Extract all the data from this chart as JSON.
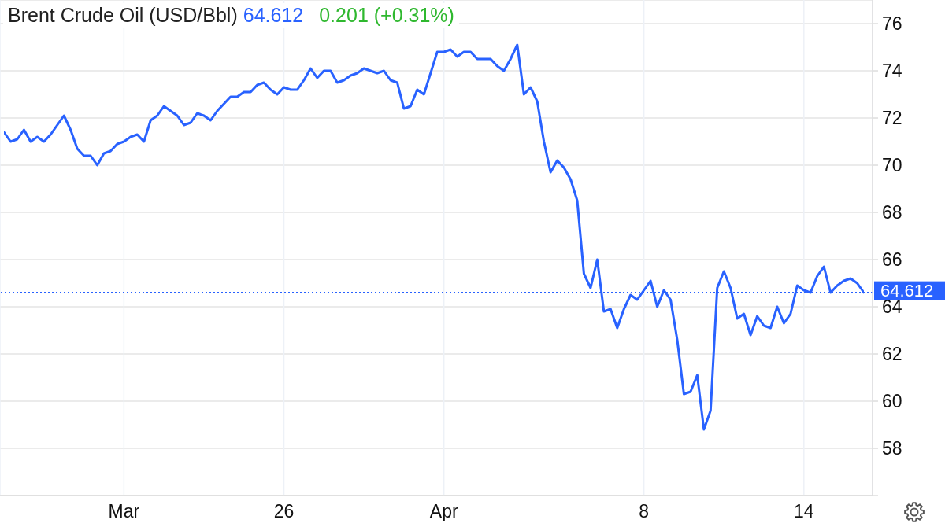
{
  "chart_data": {
    "type": "line",
    "title": "Brent Crude Oil (USD/Bbl)",
    "annotations": [
      "64.612",
      "0.201 (+0.31%)"
    ],
    "categories": [
      null,
      null,
      null,
      null,
      null,
      null,
      null,
      null,
      null,
      null,
      null,
      null,
      null,
      null,
      null,
      null,
      null,
      null,
      "Mar",
      null,
      null,
      null,
      null,
      null,
      null,
      null,
      null,
      null,
      null,
      null,
      null,
      null,
      null,
      null,
      null,
      null,
      null,
      null,
      null,
      null,
      null,
      null,
      "26",
      null,
      null,
      null,
      null,
      null,
      null,
      null,
      null,
      null,
      null,
      null,
      null,
      null,
      null,
      null,
      null,
      null,
      null,
      null,
      null,
      null,
      null,
      null,
      "Apr",
      null,
      null,
      null,
      null,
      null,
      null,
      null,
      null,
      null,
      null,
      null,
      null,
      null,
      null,
      null,
      null,
      null,
      null,
      null,
      null,
      null,
      null,
      null,
      null,
      null,
      null,
      null,
      null,
      null,
      "8",
      null,
      null,
      null,
      null,
      null,
      null,
      null,
      null,
      null,
      null,
      null,
      null,
      null,
      null,
      null,
      null,
      null,
      null,
      null,
      null,
      null,
      null,
      null,
      "14",
      null,
      null,
      null,
      null,
      null,
      null,
      null,
      null,
      null
    ],
    "series": [
      {
        "color": "#2962ff",
        "values": [
          71.4,
          71.0,
          71.1,
          71.5,
          71.0,
          71.2,
          71.0,
          71.3,
          71.7,
          72.1,
          71.5,
          70.7,
          70.4,
          70.4,
          70.0,
          70.5,
          70.6,
          70.9,
          71.0,
          71.2,
          71.3,
          71.0,
          71.9,
          72.1,
          72.5,
          72.3,
          72.1,
          71.7,
          71.8,
          72.2,
          72.1,
          71.9,
          72.3,
          72.6,
          72.9,
          72.9,
          73.1,
          73.1,
          73.4,
          73.5,
          73.2,
          73.0,
          73.3,
          73.2,
          73.2,
          73.6,
          74.1,
          73.7,
          74.0,
          74.0,
          73.5,
          73.6,
          73.8,
          73.9,
          74.1,
          74.0,
          73.9,
          74.0,
          73.6,
          73.5,
          72.4,
          72.5,
          73.2,
          73.0,
          73.9,
          74.8,
          74.8,
          74.9,
          74.6,
          74.8,
          74.8,
          74.5,
          74.5,
          74.5,
          74.2,
          74.0,
          74.5,
          75.1,
          73.0,
          73.3,
          72.7,
          71.0,
          69.7,
          70.2,
          69.9,
          69.4,
          68.5,
          65.4,
          64.8,
          66.0,
          63.8,
          63.9,
          63.1,
          63.9,
          64.5,
          64.3,
          64.7,
          65.1,
          64.0,
          64.7,
          64.3,
          62.6,
          60.3,
          60.4,
          61.1,
          58.8,
          59.6,
          64.8,
          65.5,
          64.8,
          63.5,
          63.7,
          62.8,
          63.6,
          63.2,
          63.1,
          64.0,
          63.3,
          63.7,
          64.9,
          64.7,
          64.6,
          65.3,
          65.7,
          64.6,
          64.9,
          65.1,
          65.2,
          65.0,
          64.6
        ]
      }
    ],
    "ylim": [
      56,
      77
    ],
    "yticks": [
      {
        "value": 56,
        "label": null
      },
      58,
      60,
      62,
      64,
      66,
      68,
      70,
      72,
      74,
      76
    ],
    "grid": true,
    "ref_lines": [
      {
        "axis": "y",
        "value": 64.612,
        "label": "64.612",
        "color": "#2962ff",
        "line_style": "dotted"
      }
    ]
  }
}
